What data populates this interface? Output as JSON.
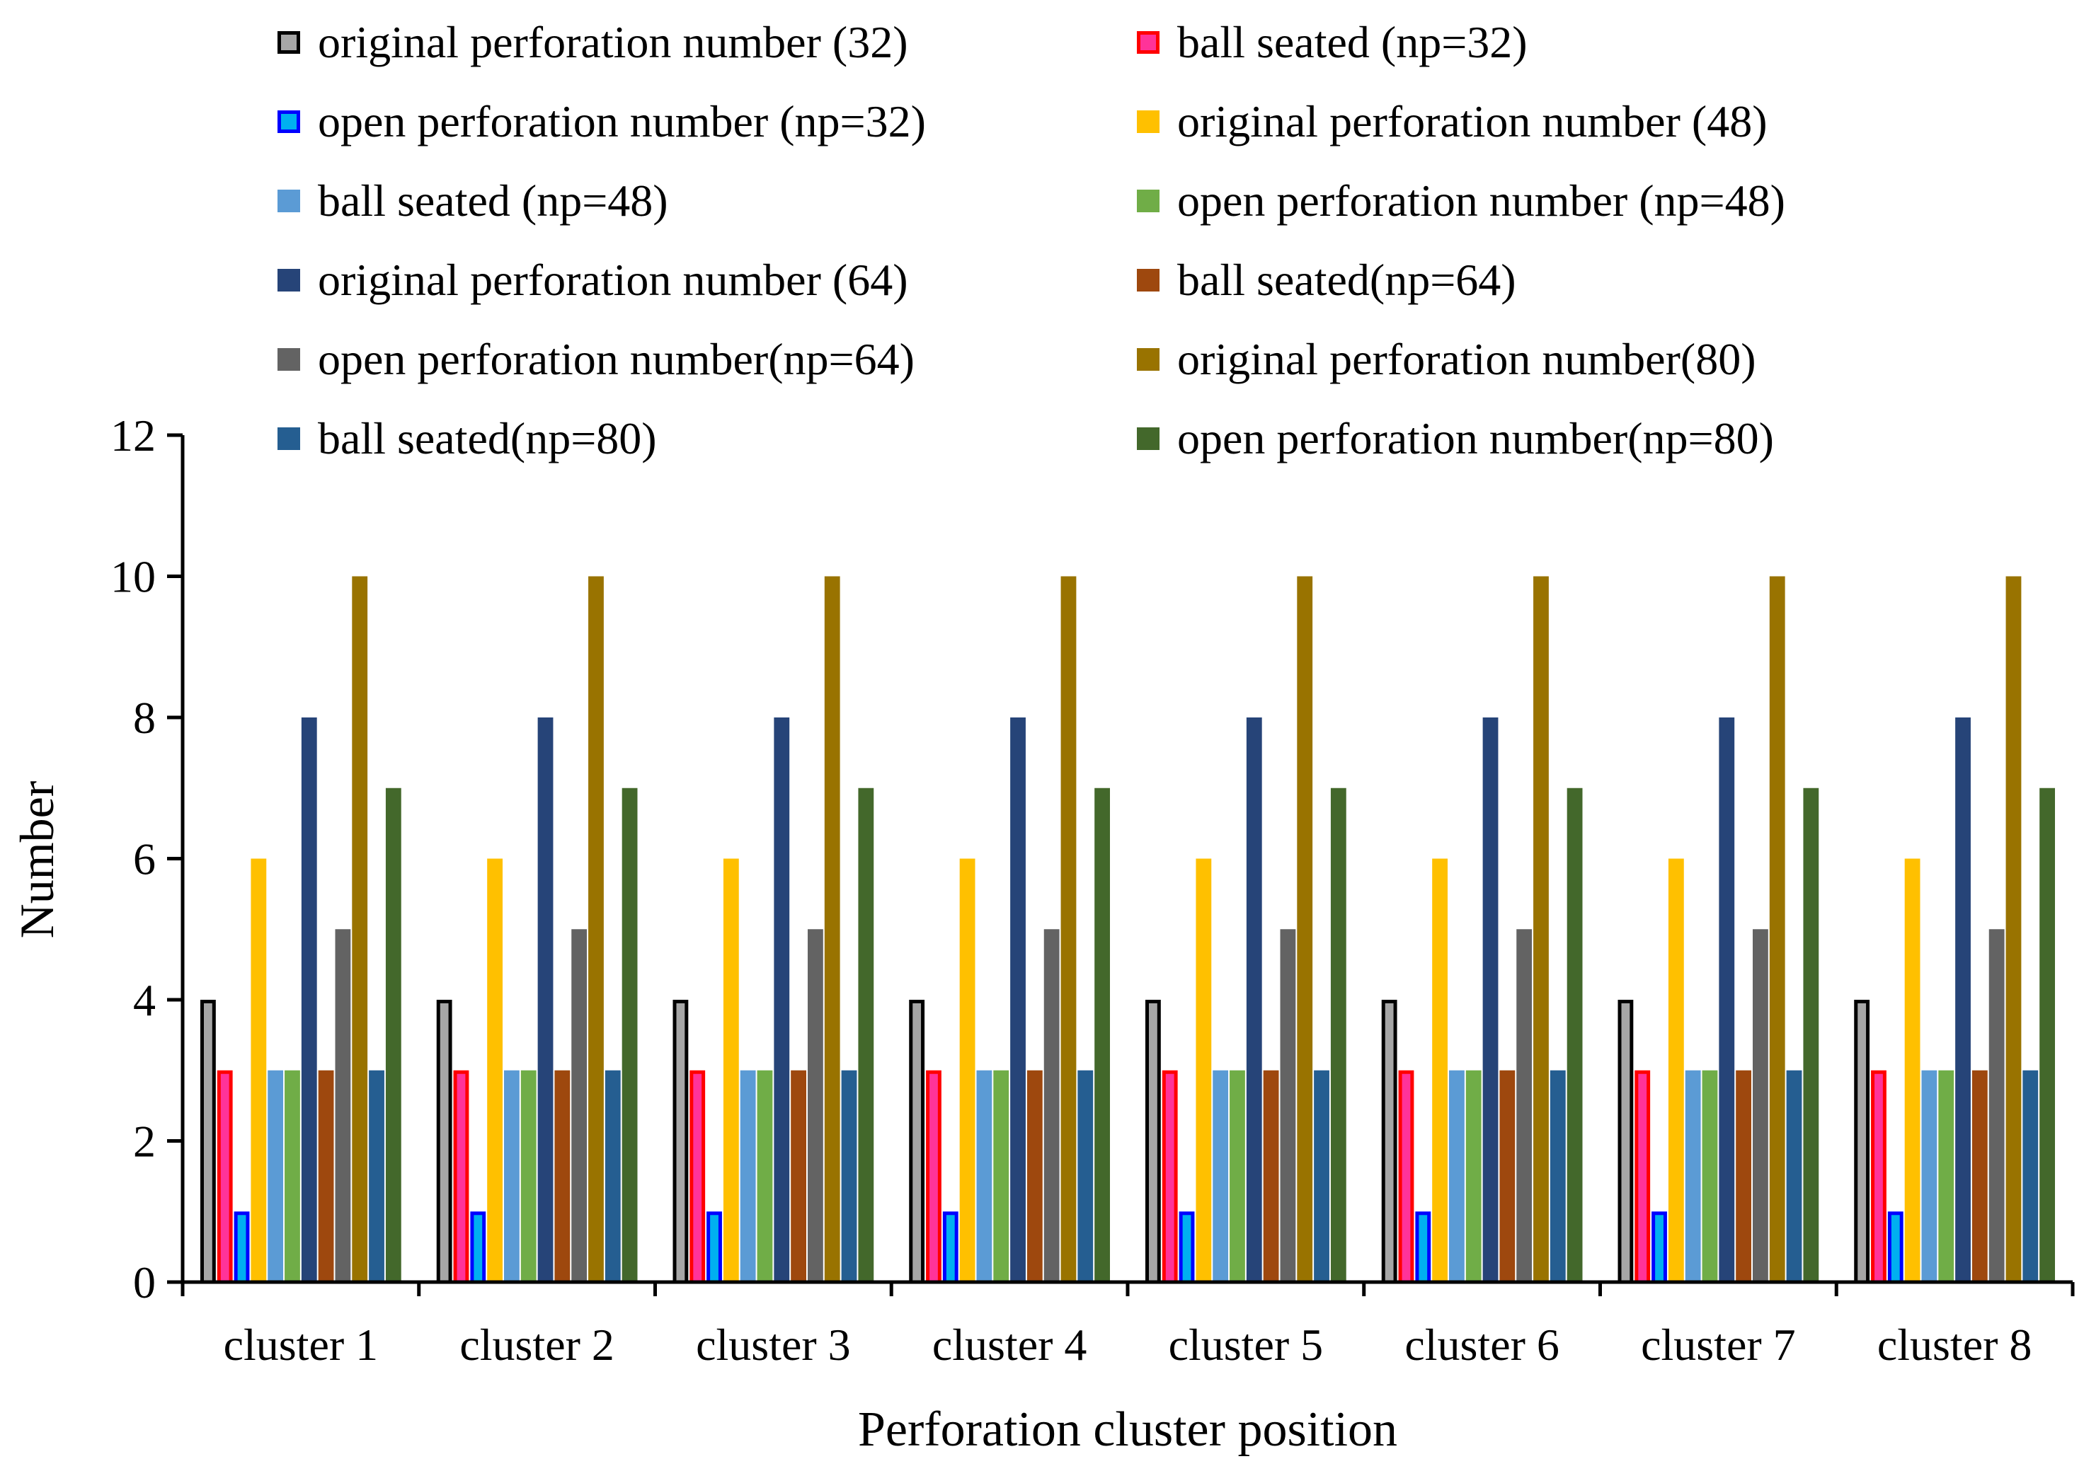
{
  "chart_data": {
    "type": "bar",
    "xlabel": "Perforation cluster position",
    "ylabel": "Number",
    "ylim": [
      0,
      12
    ],
    "yticks": [
      0,
      2,
      4,
      6,
      8,
      10,
      12
    ],
    "grid": false,
    "legend_position": "top",
    "categories": [
      "cluster 1",
      "cluster 2",
      "cluster 3",
      "cluster 4",
      "cluster 5",
      "cluster 6",
      "cluster 7",
      "cluster 8"
    ],
    "series": [
      {
        "name": "original perforation number (32)",
        "color": "#a6a6a6",
        "border": "#000000",
        "values": [
          4,
          4,
          4,
          4,
          4,
          4,
          4,
          4
        ]
      },
      {
        "name": "ball seated (np=32)",
        "color": "#ff3399",
        "border": "#ff0000",
        "values": [
          3,
          3,
          3,
          3,
          3,
          3,
          3,
          3
        ]
      },
      {
        "name": "open perforation number (np=32)",
        "color": "#00b0f0",
        "border": "#0000ff",
        "values": [
          1,
          1,
          1,
          1,
          1,
          1,
          1,
          1
        ]
      },
      {
        "name": "original perforation number (48)",
        "color": "#ffc000",
        "values": [
          6,
          6,
          6,
          6,
          6,
          6,
          6,
          6
        ]
      },
      {
        "name": "ball seated (np=48)",
        "color": "#5b9bd5",
        "values": [
          3,
          3,
          3,
          3,
          3,
          3,
          3,
          3
        ]
      },
      {
        "name": "open perforation number (np=48)",
        "color": "#70ad47",
        "values": [
          3,
          3,
          3,
          3,
          3,
          3,
          3,
          3
        ]
      },
      {
        "name": "original perforation number (64)",
        "color": "#264478",
        "values": [
          8,
          8,
          8,
          8,
          8,
          8,
          8,
          8
        ]
      },
      {
        "name": "ball seated(np=64)",
        "color": "#9e480e",
        "values": [
          3,
          3,
          3,
          3,
          3,
          3,
          3,
          3
        ]
      },
      {
        "name": "open perforation number(np=64)",
        "color": "#636363",
        "values": [
          5,
          5,
          5,
          5,
          5,
          5,
          5,
          5
        ]
      },
      {
        "name": "original perforation number(80)",
        "color": "#997300",
        "values": [
          10,
          10,
          10,
          10,
          10,
          10,
          10,
          10
        ]
      },
      {
        "name": "ball seated(np=80)",
        "color": "#255e91",
        "values": [
          3,
          3,
          3,
          3,
          3,
          3,
          3,
          3
        ]
      },
      {
        "name": "open perforation number(np=80)",
        "color": "#43682b",
        "values": [
          7,
          7,
          7,
          7,
          7,
          7,
          7,
          7
        ]
      }
    ]
  }
}
